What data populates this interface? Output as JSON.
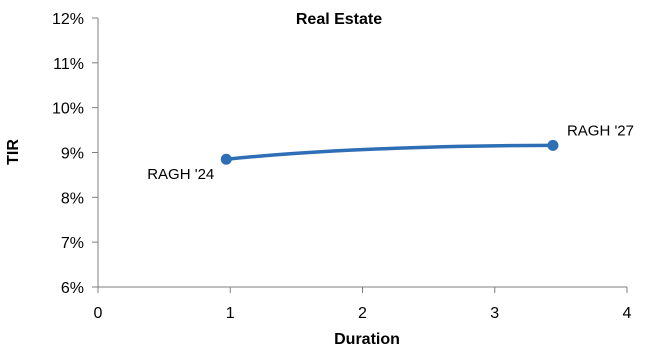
{
  "chart_data": {
    "type": "line",
    "title": "Real Estate",
    "xlabel": "Duration",
    "ylabel": "TIR",
    "xlim": [
      0,
      4
    ],
    "ylim": [
      6,
      12
    ],
    "x_ticks": [
      "0",
      "1",
      "2",
      "3",
      "4"
    ],
    "y_ticks": [
      "6%",
      "7%",
      "8%",
      "9%",
      "10%",
      "11%",
      "12%"
    ],
    "grid": false,
    "legend": "none",
    "series": [
      {
        "color": "#2E6EB5",
        "smooth": true,
        "points": [
          {
            "x": 0.97,
            "y": 8.85,
            "label": "RAGH '24"
          },
          {
            "x": 3.44,
            "y": 9.16,
            "label": "RAGH '27"
          }
        ]
      }
    ]
  }
}
